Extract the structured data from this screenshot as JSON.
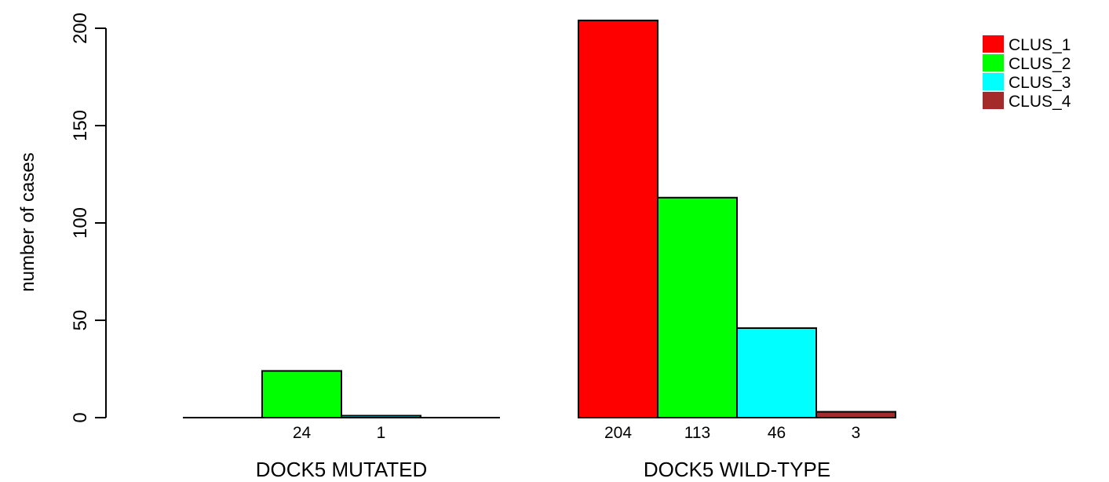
{
  "chart_data": {
    "type": "bar",
    "ylabel": "number of cases",
    "ylim": [
      0,
      200
    ],
    "yticks": [
      "0",
      "50",
      "100",
      "150",
      "200"
    ],
    "groups": [
      {
        "label": "DOCK5 MUTATED",
        "values": [
          0,
          24,
          1,
          0
        ],
        "value_labels": [
          "",
          "24",
          "1",
          ""
        ]
      },
      {
        "label": "DOCK5 WILD-TYPE",
        "values": [
          204,
          113,
          46,
          3
        ],
        "value_labels": [
          "204",
          "113",
          "46",
          "3"
        ]
      }
    ],
    "series": [
      {
        "name": "CLUS_1",
        "color": "#ff0000"
      },
      {
        "name": "CLUS_2",
        "color": "#00ff00"
      },
      {
        "name": "CLUS_3",
        "color": "#00ffff"
      },
      {
        "name": "CLUS_4",
        "color": "#a52a2a"
      }
    ],
    "legend_position": "top-right",
    "grid": false
  }
}
